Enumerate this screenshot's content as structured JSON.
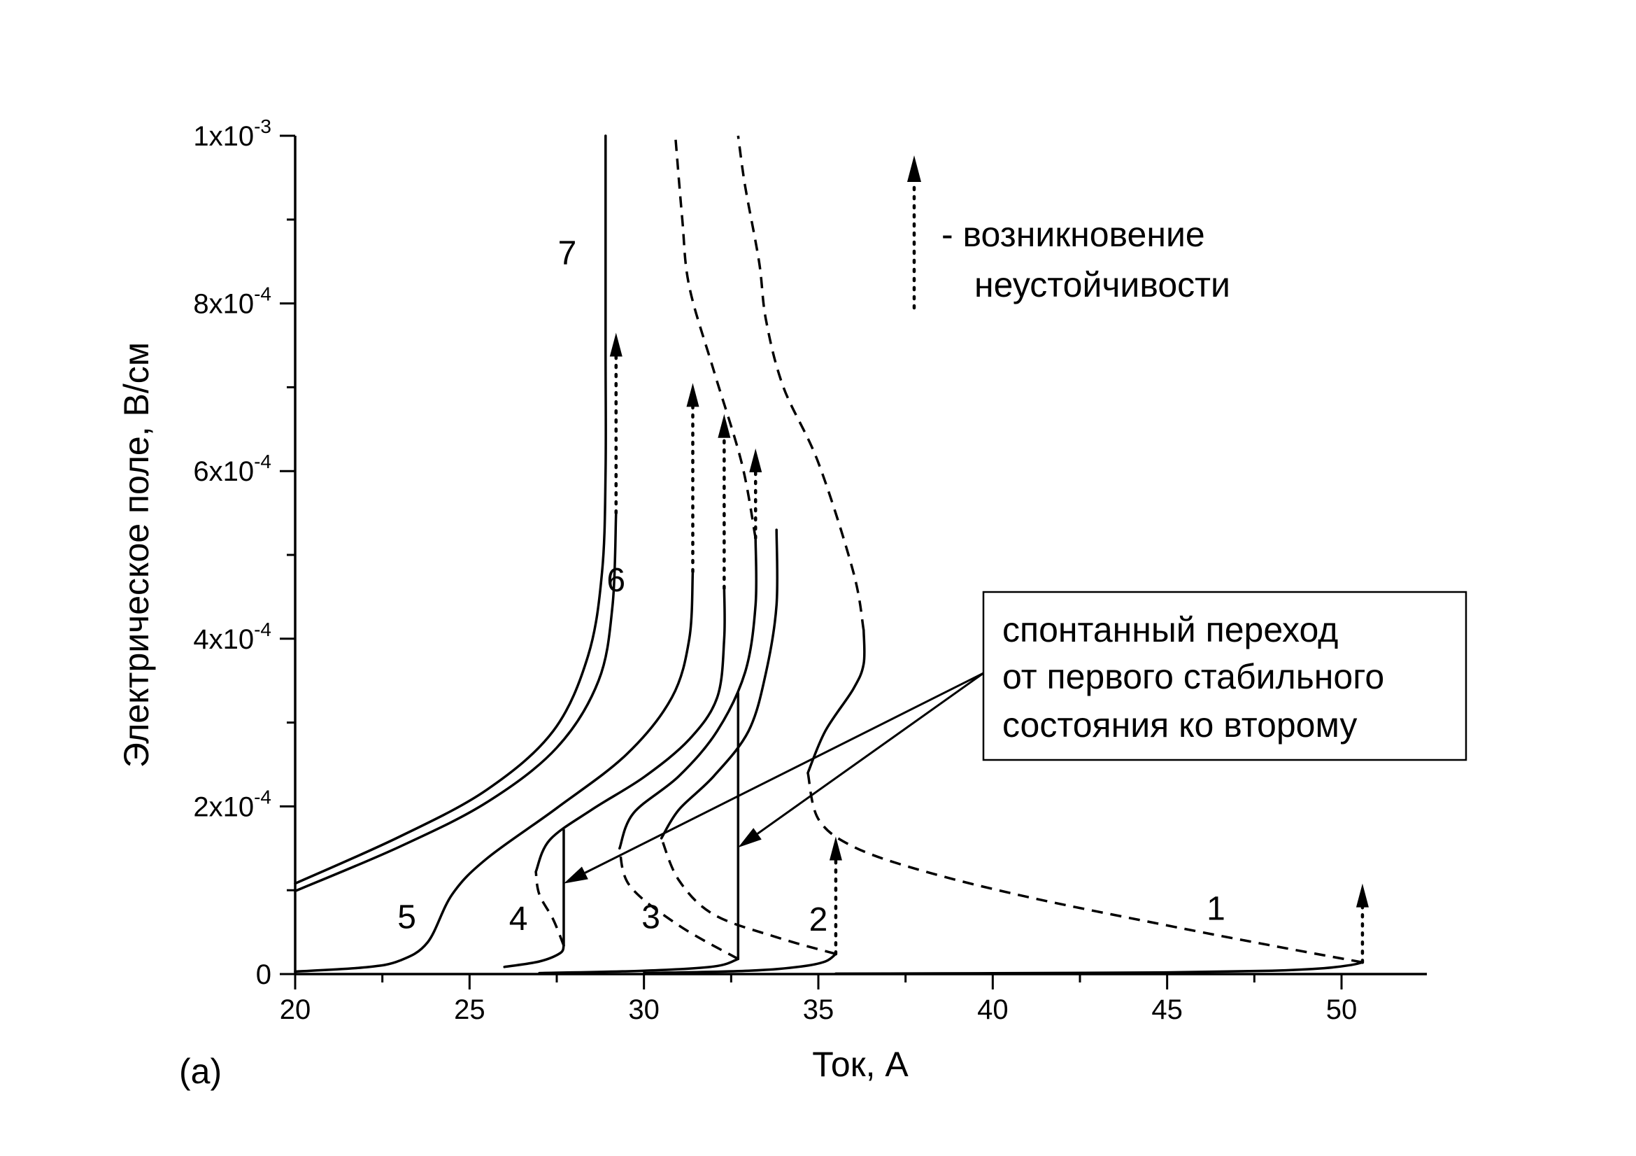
{
  "chart_data": {
    "type": "line",
    "panel_label": "(a)",
    "xlabel": "Ток, А",
    "ylabel": "Электрическое поле, В/см",
    "xlim": [
      20,
      52.2
    ],
    "ylim": [
      0,
      0.001
    ],
    "x_ticks": [
      20,
      25,
      30,
      35,
      40,
      45,
      50
    ],
    "y_ticks": [
      {
        "value": 0,
        "mantissa": "0",
        "exponent": ""
      },
      {
        "value": 0.0002,
        "mantissa": "2x10",
        "exponent": "-4"
      },
      {
        "value": 0.0004,
        "mantissa": "4x10",
        "exponent": "-4"
      },
      {
        "value": 0.0006,
        "mantissa": "6x10",
        "exponent": "-4"
      },
      {
        "value": 0.0008,
        "mantissa": "8x10",
        "exponent": "-4"
      },
      {
        "value": 0.001,
        "mantissa": "1x10",
        "exponent": "-3"
      }
    ],
    "series": [
      {
        "name": "1",
        "label_at": [
          46.4,
          7.8e-05
        ],
        "solid": [
          [
            35.5,
            5e-07
          ],
          [
            40,
            1e-06
          ],
          [
            45,
            2e-06
          ],
          [
            48,
            4e-06
          ],
          [
            49.5,
            7e-06
          ],
          [
            50.3,
            1.1e-05
          ],
          [
            50.6,
            1.4e-05
          ]
        ],
        "dashed": [
          [
            50.6,
            1.4e-05
          ],
          [
            48,
            3.4e-05
          ],
          [
            45,
            5.8e-05
          ],
          [
            41,
            9.2e-05
          ],
          [
            38,
            0.000123
          ],
          [
            36,
            0.000152
          ],
          [
            35,
            0.000185
          ],
          [
            34.7,
            0.00024
          ]
        ],
        "solid_upper": [
          [
            34.7,
            0.00024
          ],
          [
            35.2,
            0.00029
          ],
          [
            36,
            0.00034
          ],
          [
            36.3,
            0.00037
          ],
          [
            36.3,
            0.00041
          ]
        ],
        "dashed_upper": [
          [
            36.3,
            0.00041
          ],
          [
            36,
            0.00048
          ],
          [
            35,
            0.00061
          ],
          [
            34,
            0.0007
          ],
          [
            33.5,
            0.00078
          ],
          [
            33.3,
            0.00085
          ],
          [
            32.9,
            0.00094
          ],
          [
            32.7,
            0.001
          ]
        ],
        "arrow": {
          "x": 50.6,
          "y_from": 1.4e-05,
          "y_to": 0.000108
        }
      },
      {
        "name": "2",
        "label_at": [
          35,
          6.5e-05
        ],
        "solid": [
          [
            30,
            1.2e-06
          ],
          [
            33,
            4e-06
          ],
          [
            34.5,
            9e-06
          ],
          [
            35.2,
            1.5e-05
          ],
          [
            35.5,
            2.4e-05
          ]
        ],
        "dashed": [
          [
            35.5,
            2.4e-05
          ],
          [
            33.8,
            4.4e-05
          ],
          [
            32,
            7.1e-05
          ],
          [
            31,
            0.000112
          ],
          [
            30.5,
            0.000162
          ]
        ],
        "solid_upper": [
          [
            30.5,
            0.000162
          ],
          [
            31,
            0.000196
          ],
          [
            32,
            0.000236
          ],
          [
            33,
            0.00029
          ],
          [
            33.5,
            0.00036
          ],
          [
            33.8,
            0.00044
          ],
          [
            33.8,
            0.00053
          ]
        ],
        "arrow": {
          "x": 35.5,
          "y_from": 2.4e-05,
          "y_to": 0.000164
        }
      },
      {
        "name": "3",
        "label_at": [
          30.2,
          6.8e-05
        ],
        "solid": [
          [
            27,
            1.2e-06
          ],
          [
            30,
            4e-06
          ],
          [
            32,
            9e-06
          ],
          [
            32.7,
            1.8e-05
          ]
        ],
        "dashed": [
          [
            32.7,
            1.8e-05
          ],
          [
            31,
            5.8e-05
          ],
          [
            29.6,
            0.000105
          ],
          [
            29.3,
            0.00015
          ]
        ],
        "solid_upper": [
          [
            29.3,
            0.00015
          ],
          [
            29.7,
            0.000192
          ],
          [
            31,
            0.000236
          ],
          [
            32.1,
            0.00029
          ],
          [
            32.9,
            0.00036
          ],
          [
            33.2,
            0.00044
          ],
          [
            33.2,
            0.00052
          ]
        ],
        "dashed_upper": [
          [
            33.2,
            0.00052
          ],
          [
            32.8,
            0.00061
          ],
          [
            32,
            0.00072
          ],
          [
            31.3,
            0.00082
          ],
          [
            31.1,
            0.0009
          ],
          [
            30.9,
            0.001
          ]
        ],
        "arrow": {
          "x": 33.2,
          "y_from": 0.00052,
          "y_to": 0.000627
        }
      },
      {
        "name": "4",
        "label_at": [
          26.4,
          6.6e-05
        ],
        "solid": [
          [
            26,
            8.5e-06
          ],
          [
            27,
            1.5e-05
          ],
          [
            27.6,
            2.5e-05
          ],
          [
            27.7,
            3.4e-05
          ]
        ],
        "dashed": [
          [
            27.7,
            3.4e-05
          ],
          [
            27.4,
            6.5e-05
          ],
          [
            27,
            9.5e-05
          ],
          [
            26.9,
            0.000122
          ]
        ],
        "solid_upper": [
          [
            26.9,
            0.000122
          ],
          [
            27.3,
            0.00016
          ],
          [
            28.5,
            0.000196
          ],
          [
            30,
            0.000235
          ],
          [
            31.3,
            0.00028
          ],
          [
            32.1,
            0.00033
          ],
          [
            32.3,
            0.0004
          ],
          [
            32.3,
            0.00046
          ]
        ],
        "arrow": {
          "x": 32.3,
          "y_from": 0.00046,
          "y_to": 0.000668
        }
      },
      {
        "name": "5",
        "label_at": [
          23.2,
          6.8e-05
        ],
        "solid": [
          [
            20,
            3e-06
          ],
          [
            22,
            8e-06
          ],
          [
            23,
            1.6e-05
          ],
          [
            23.8,
            3.8e-05
          ],
          [
            24.5,
            9.5e-05
          ],
          [
            25.5,
            0.000138
          ],
          [
            27.5,
            0.000198
          ],
          [
            29.5,
            0.000262
          ],
          [
            30.8,
            0.00033
          ],
          [
            31.3,
            0.0004
          ],
          [
            31.4,
            0.00048
          ]
        ],
        "arrow": {
          "x": 31.4,
          "y_from": 0.00048,
          "y_to": 0.000705
        }
      },
      {
        "name": "6",
        "label_at": [
          29.2,
          0.00047
        ],
        "solid": [
          [
            20,
            9.9e-05
          ],
          [
            23,
            0.000152
          ],
          [
            25.5,
            0.000205
          ],
          [
            27.5,
            0.00027
          ],
          [
            28.7,
            0.00035
          ],
          [
            29.1,
            0.00044
          ],
          [
            29.2,
            0.00055
          ]
        ],
        "arrow": {
          "x": 29.2,
          "y_from": 0.00055,
          "y_to": 0.000765
        }
      },
      {
        "name": "7",
        "label_at": [
          27.8,
          0.00086
        ],
        "solid": [
          [
            20,
            0.000108
          ],
          [
            23,
            0.000164
          ],
          [
            25.5,
            0.00022
          ],
          [
            27.4,
            0.00029
          ],
          [
            28.4,
            0.00038
          ],
          [
            28.8,
            0.00048
          ],
          [
            28.9,
            0.0006
          ],
          [
            28.9,
            0.00075
          ],
          [
            28.9,
            0.001
          ]
        ]
      }
    ],
    "transitions": [
      {
        "curve": "4",
        "x": 27.7,
        "y_from": 3.4e-05,
        "y_to": 0.000172
      },
      {
        "curve": "3",
        "x": 32.7,
        "y_from": 1.8e-05,
        "y_to": 0.000335
      }
    ],
    "legend": {
      "position": "top-right",
      "line1": "- возникновение",
      "line2": "неустойчивости"
    },
    "callout": {
      "line1": "спонтанный переход",
      "line2": "от первого стабильного",
      "line3": "состояния ко второму"
    }
  }
}
